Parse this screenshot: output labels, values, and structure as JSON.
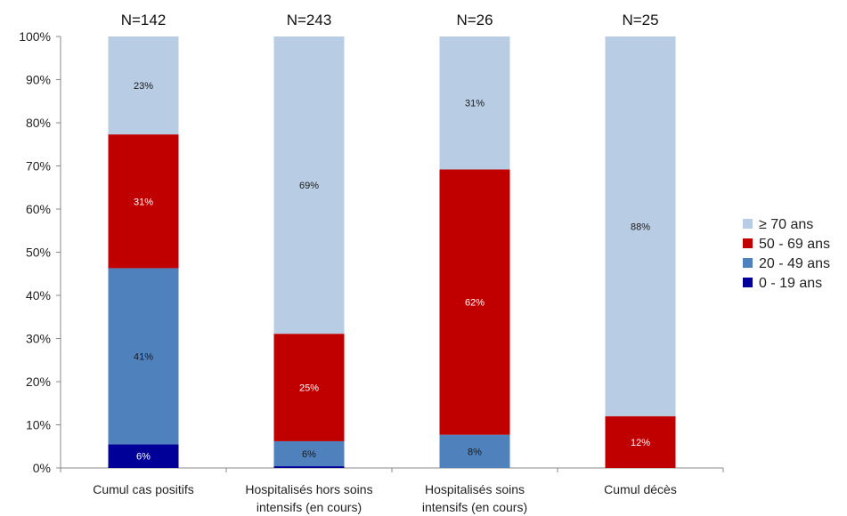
{
  "chart_data": {
    "type": "bar",
    "stacked": true,
    "percent": true,
    "categories": [
      [
        "Cumul cas positifs"
      ],
      [
        "Hospitalisés hors soins",
        "intensifs (en cours)"
      ],
      [
        "Hospitalisés soins",
        "intensifs (en cours)"
      ],
      [
        "Cumul décès"
      ]
    ],
    "n_labels": [
      "N=142",
      "N=243",
      "N=26",
      "N=25"
    ],
    "yticks": [
      "0%",
      "10%",
      "20%",
      "30%",
      "40%",
      "50%",
      "60%",
      "70%",
      "80%",
      "90%",
      "100%"
    ],
    "ylim": [
      0,
      100
    ],
    "legend_position": "right",
    "series": [
      {
        "name": "0 - 19 ans",
        "color": "#000099",
        "label_color": "#ffffff",
        "values": [
          5.5,
          0.4,
          0,
          0
        ],
        "labels": [
          "6%",
          "",
          "",
          ""
        ]
      },
      {
        "name": "20 - 49 ans",
        "color": "#4f81bd",
        "label_color": "#1a1a1a",
        "values": [
          40.8,
          5.8,
          7.7,
          0
        ],
        "labels": [
          "41%",
          "6%",
          "8%",
          ""
        ]
      },
      {
        "name": "50 - 69 ans",
        "color": "#c00000",
        "label_color": "#ffffff",
        "values": [
          31.0,
          24.9,
          61.5,
          12.0
        ],
        "labels": [
          "31%",
          "25%",
          "62%",
          "12%"
        ]
      },
      {
        "name": "≥ 70 ans",
        "color": "#b8cce4",
        "label_color": "#1a1a1a",
        "values": [
          22.7,
          68.9,
          30.8,
          88.0
        ],
        "labels": [
          "23%",
          "69%",
          "31%",
          "88%"
        ]
      }
    ],
    "legend_order": [
      "≥ 70 ans",
      "50 - 69 ans",
      "20 - 49 ans",
      "0 - 19 ans"
    ]
  }
}
